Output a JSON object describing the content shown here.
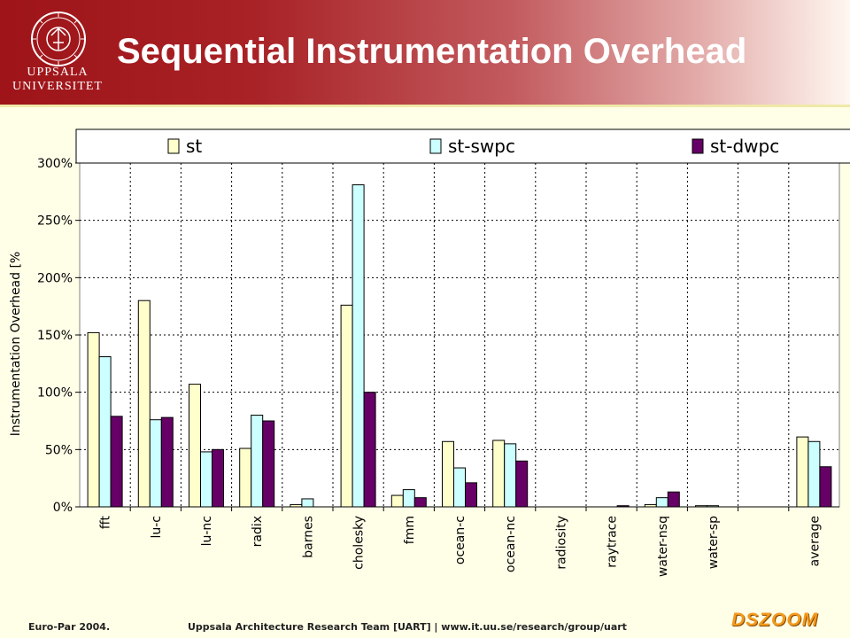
{
  "header": {
    "logo_line1": "UPPSALA",
    "logo_line2": "UNIVERSITET",
    "title": "Sequential Instrumentation Overhead"
  },
  "footer": {
    "left": "Euro-Par 2004.",
    "center": "Uppsala Architecture Research Team [UART] | www.it.uu.se/research/group/uart",
    "brand": "DSZOOM"
  },
  "colors": {
    "st": "#ffffcc",
    "st-swpc": "#ccffff",
    "st-dwpc": "#660066",
    "plot_bg": "#ffffff",
    "header_red": "#a41c20"
  },
  "chart_data": {
    "type": "bar",
    "title": "",
    "xlabel": "",
    "ylabel": "Instrumentation Overhead [%",
    "ylim": [
      0,
      300
    ],
    "yticks": [
      "0%",
      "50%",
      "100%",
      "150%",
      "200%",
      "250%",
      "300%"
    ],
    "grid": "dotted",
    "legend_position": "top",
    "categories": [
      "fft",
      "lu-c",
      "lu-nc",
      "radix",
      "barnes",
      "cholesky",
      "fmm",
      "ocean-c",
      "ocean-nc",
      "radiosity",
      "raytrace",
      "water-nsq",
      "water-sp",
      "",
      "average"
    ],
    "series": [
      {
        "name": "st",
        "color": "#ffffcc",
        "values": [
          152,
          180,
          107,
          51,
          2,
          176,
          10,
          57,
          58,
          0,
          0,
          2,
          1,
          0,
          61
        ]
      },
      {
        "name": "st-swpc",
        "color": "#ccffff",
        "values": [
          131,
          76,
          48,
          80,
          7,
          281,
          15,
          34,
          55,
          0,
          0,
          8,
          1,
          0,
          57
        ]
      },
      {
        "name": "st-dwpc",
        "color": "#660066",
        "values": [
          79,
          78,
          50,
          75,
          0,
          100,
          8,
          21,
          40,
          0,
          1,
          13,
          0,
          0,
          35
        ]
      }
    ]
  }
}
